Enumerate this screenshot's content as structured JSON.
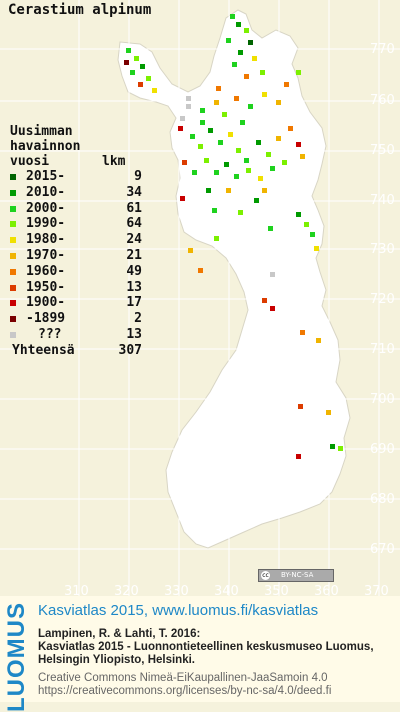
{
  "map": {
    "title": "Cerastium alpinum",
    "legend": {
      "heading_lines": [
        "Uusimman",
        "havainnon",
        "vuosi"
      ],
      "count_heading": "lkm",
      "items": [
        {
          "label": "2015-",
          "count": "9",
          "color": "#006400"
        },
        {
          "label": "2010-",
          "count": "34",
          "color": "#009a00"
        },
        {
          "label": "2000-",
          "count": "61",
          "color": "#1ed21e"
        },
        {
          "label": "1990-",
          "count": "64",
          "color": "#7cf000"
        },
        {
          "label": "1980-",
          "count": "24",
          "color": "#f0e000"
        },
        {
          "label": "1970-",
          "count": "21",
          "color": "#f0b400"
        },
        {
          "label": "1960-",
          "count": "49",
          "color": "#f07800"
        },
        {
          "label": "1950-",
          "count": "13",
          "color": "#dc3c00"
        },
        {
          "label": "1900-",
          "count": "17",
          "color": "#c80000"
        },
        {
          "label": "-1899",
          "count": "2",
          "color": "#7a0000"
        },
        {
          "label": "???",
          "count": "13",
          "color": "#c8c8c8"
        }
      ],
      "total_label": "Yhteensä",
      "total_count": "307"
    },
    "grid_y_ticks": [
      "770",
      "760",
      "750",
      "740",
      "730",
      "720",
      "710",
      "700",
      "690",
      "680",
      "670"
    ],
    "grid_x_ticks": [
      "310",
      "320",
      "330",
      "340",
      "350",
      "360",
      "370"
    ],
    "license_badge": "BY-NC-SA"
  },
  "footer": {
    "logo": "LUOMUS",
    "title": "Kasviatlas 2015, www.luomus.fi/kasviatlas",
    "citation_1": "Lampinen, R. & Lahti, T. 2016:",
    "citation_2": "Kasviatlas 2015 - Luonnontieteellinen keskusmuseo Luomus,",
    "citation_3": "Helsingin Yliopisto, Helsinki.",
    "license_1": "Creative Commons Nimeä-EiKaupallinen-JaaSamoin 4.0",
    "license_2": "https://creativecommons.org/licenses/by-nc-sa/4.0/deed.fi"
  }
}
